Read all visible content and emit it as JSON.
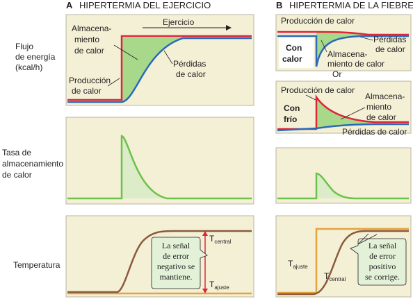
{
  "header": {
    "a_letter": "A",
    "a_title": "HIPERTERMIA DEL EJERCICIO",
    "b_letter": "B",
    "b_title": "HIPERTERMIA DE LA FIEBRE"
  },
  "row_labels": {
    "flux": [
      "Flujo",
      "de energía",
      "(kcal/h)"
    ],
    "storage": [
      "Tasa de",
      "almacenamiento",
      "de calor"
    ],
    "temperature": "Temperatura"
  },
  "panel_a1": {
    "exercise": "Ejercicio",
    "storage": [
      "Almacena-",
      "miento",
      "de calor"
    ],
    "losses": [
      "Pérdidas",
      "de calor"
    ],
    "production": [
      "Producción",
      "de calor"
    ]
  },
  "panel_b1": {
    "production": "Producción de calor",
    "hot": [
      "Con",
      "calor"
    ],
    "losses": [
      "Pérdidas",
      "de calor"
    ],
    "storage": [
      "Almacena-",
      "miento de calor"
    ]
  },
  "or_label": "Or",
  "panel_b2": {
    "production": "Producción de calor",
    "cold": [
      "Con",
      "frío"
    ],
    "storage": [
      "Almacena-",
      "miento",
      "de calor"
    ],
    "losses": "Pérdidas de calor"
  },
  "panel_a3": {
    "t_central": "T",
    "t_central_sub": "central",
    "t_set": "T",
    "t_set_sub": "ajuste",
    "bubble": [
      "La señal",
      "de error",
      "negativo se",
      "mantiene."
    ]
  },
  "panel_b3": {
    "t_set": "T",
    "t_set_sub": "ajuste",
    "t_central": "T",
    "t_central_sub": "central",
    "bubble": [
      "La señal",
      "de error",
      "positivo",
      "se corrige."
    ]
  },
  "colors": {
    "production": "#e0243a",
    "losses": "#2a6ab8",
    "storage_line": "#6cc24a",
    "storage_fill": "#a8d98a",
    "storage_fill_light": "#dcebc8",
    "t_central": "#8b5a3c",
    "t_set": "#e6a23c",
    "panel": "#f3f0d6",
    "bubble": "#e2f1d8"
  }
}
